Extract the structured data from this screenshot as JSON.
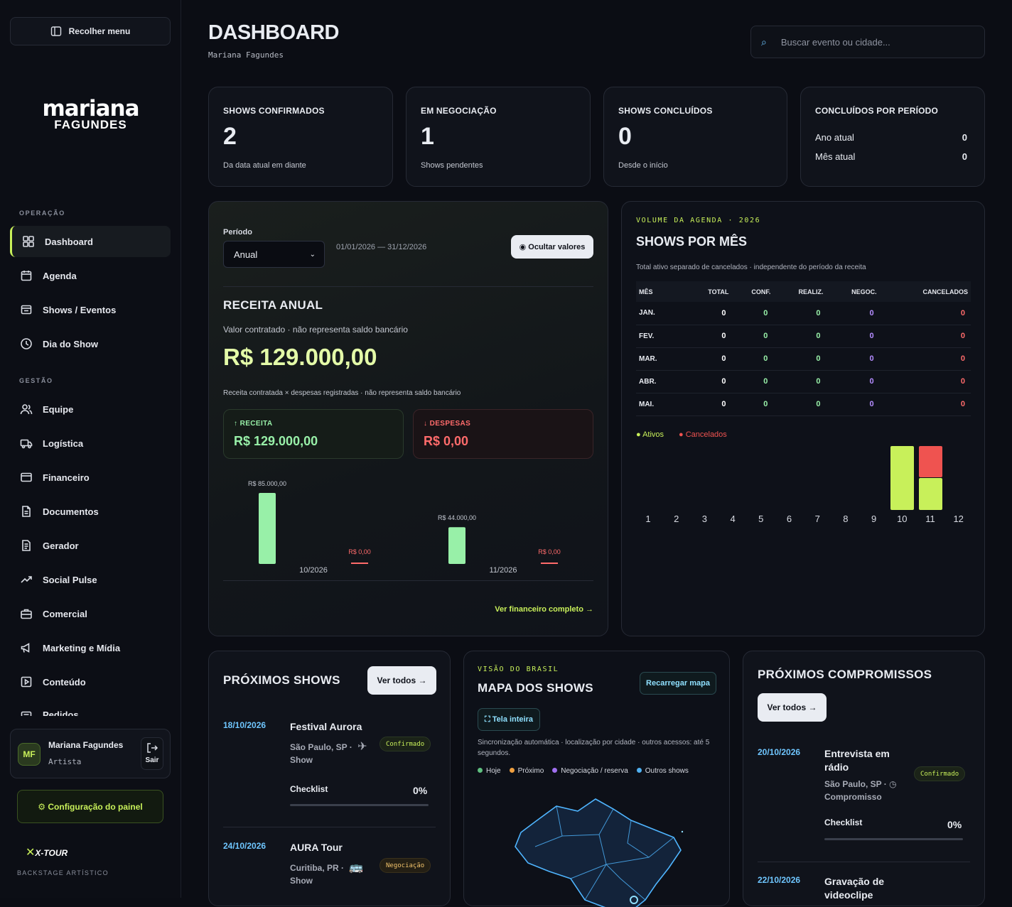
{
  "sidebar": {
    "collapse_label": "Recolher menu",
    "brand_line1": "mariana",
    "brand_line2": "FAGUNDES",
    "section_operacao": "OPERAÇÃO",
    "section_gestao": "GESTÃO",
    "items": [
      {
        "label": "Dashboard",
        "icon": "grid-icon",
        "active": true
      },
      {
        "label": "Agenda",
        "icon": "calendar-icon"
      },
      {
        "label": "Shows / Eventos",
        "icon": "ticket-icon"
      },
      {
        "label": "Dia do Show",
        "icon": "clock-icon"
      },
      {
        "label": "Equipe",
        "icon": "users-icon"
      },
      {
        "label": "Logística",
        "icon": "truck-icon"
      },
      {
        "label": "Financeiro",
        "icon": "wallet-icon"
      },
      {
        "label": "Documentos",
        "icon": "document-icon"
      },
      {
        "label": "Gerador",
        "icon": "file-text-icon"
      },
      {
        "label": "Social Pulse",
        "icon": "trending-icon"
      },
      {
        "label": "Comercial",
        "icon": "briefcase-icon"
      },
      {
        "label": "Marketing e Mídia",
        "icon": "megaphone-icon"
      },
      {
        "label": "Conteúdo",
        "icon": "play-icon"
      },
      {
        "label": "Pedidos",
        "icon": "list-icon"
      }
    ],
    "user": {
      "initials": "MF",
      "name": "Mariana Fagundes",
      "role": "Artista",
      "logout_label": "Sair"
    },
    "config_label": "⚙ Configuração do painel",
    "footer_logo": "X-TOUR",
    "footer_tag": "BACKSTAGE ARTÍSTICO"
  },
  "header": {
    "title": "DASHBOARD",
    "subtitle": "Mariana Fagundes",
    "search_placeholder": "Buscar evento ou cidade..."
  },
  "kpis": [
    {
      "title": "SHOWS CONFIRMADOS",
      "value": "2",
      "sub": "Da data atual em diante"
    },
    {
      "title": "EM NEGOCIAÇÃO",
      "value": "1",
      "sub": "Shows pendentes"
    },
    {
      "title": "SHOWS CONCLUÍDOS",
      "value": "0",
      "sub": "Desde o início"
    }
  ],
  "period_kpi": {
    "title": "CONCLUÍDOS POR PERÍODO",
    "rows": [
      {
        "label": "Ano atual",
        "value": "0"
      },
      {
        "label": "Mês atual",
        "value": "0"
      }
    ]
  },
  "finance": {
    "period_label": "Período",
    "period_value": "Anual",
    "range": "01/01/2026 — 31/12/2026",
    "hide_label": "◉ Ocultar valores",
    "title": "RECEITA ANUAL",
    "note": "Valor contratado · não representa saldo bancário",
    "total": "R$ 129.000,00",
    "note2": "Receita contratada × despesas registradas · não representa saldo bancário",
    "receita_label": "↑ RECEITA",
    "receita_value": "R$ 129.000,00",
    "despesas_label": "↓ DESPESAS",
    "despesas_value": "R$ 0,00",
    "link": "Ver financeiro completo →",
    "colors": {
      "receita": "#98f0a8",
      "despesas": "#ff6b6b"
    }
  },
  "chart_data": [
    {
      "type": "bar",
      "categories": [
        "10/2026",
        "11/2026"
      ],
      "series": [
        {
          "values": [
            85000,
            44000
          ],
          "value_labels": [
            "R$ 85.000,00",
            "R$ 44.000,00"
          ]
        },
        {
          "values": [
            0,
            0
          ],
          "value_labels": [
            "R$ 0,00",
            "R$ 0,00"
          ]
        }
      ],
      "ylim": [
        0,
        85000
      ]
    },
    {
      "type": "bar",
      "stacked": true,
      "categories": [
        "1",
        "2",
        "3",
        "4",
        "5",
        "6",
        "7",
        "8",
        "9",
        "10",
        "11",
        "12"
      ],
      "series": [
        {
          "name": "Ativos",
          "color": "#c8f05a",
          "values": [
            0,
            0,
            0,
            0,
            0,
            0,
            0,
            0,
            0,
            2,
            1,
            0
          ]
        },
        {
          "name": "Cancelados",
          "color": "#ef5350",
          "values": [
            0,
            0,
            0,
            0,
            0,
            0,
            0,
            0,
            0,
            0,
            1,
            0
          ]
        }
      ],
      "ylim": [
        0,
        2
      ],
      "legend": "top-left"
    }
  ],
  "monthly": {
    "eyebrow": "VOLUME DA AGENDA · 2026",
    "title": "SHOWS POR MÊS",
    "note": "Total ativo separado de cancelados · independente do período da receita",
    "headers": [
      "MÊS",
      "TOTAL",
      "CONF.",
      "REALIZ.",
      "NEGOC.",
      "CANCELADOS"
    ],
    "rows": [
      [
        "JAN.",
        "0",
        "0",
        "0",
        "0",
        "0"
      ],
      [
        "FEV.",
        "0",
        "0",
        "0",
        "0",
        "0"
      ],
      [
        "MAR.",
        "0",
        "0",
        "0",
        "0",
        "0"
      ],
      [
        "ABR.",
        "0",
        "0",
        "0",
        "0",
        "0"
      ],
      [
        "MAI.",
        "0",
        "0",
        "0",
        "0",
        "0"
      ]
    ],
    "legend_ativos": "● Ativos",
    "legend_cancelados": "● Cancelados"
  },
  "upcoming": {
    "title": "PRÓXIMOS SHOWS",
    "see_all": "Ver todos →",
    "checklist_label": "Checklist",
    "items": [
      {
        "date": "18/10/2026",
        "name": "Festival Aurora",
        "location": "São Paulo, SP ·",
        "type": "Show",
        "badge": "Confirmado",
        "transport": "✈",
        "checklist": "0%",
        "progress": 0
      },
      {
        "date": "24/10/2026",
        "name": "AURA Tour",
        "location": "Curitiba, PR ·",
        "type": "Show",
        "badge": "Negociação",
        "transport": "🚌"
      }
    ]
  },
  "map": {
    "eyebrow": "VISÃO DO BRASIL",
    "title": "MAPA DOS SHOWS",
    "reload_label": "Recarregar mapa",
    "fullscreen_label": "⛶ Tela inteira",
    "note": "Sincronização automática · localização por cidade · outros acessos: até 5 segundos.",
    "legend": [
      {
        "label": "Hoje",
        "color": "#5fbf7f"
      },
      {
        "label": "Próximo",
        "color": "#f0a040"
      },
      {
        "label": "Negociação / reserva",
        "color": "#a070f0"
      },
      {
        "label": "Outros shows",
        "color": "#50b0f0"
      }
    ]
  },
  "commitments": {
    "title": "PRÓXIMOS COMPROMISSOS",
    "see_all": "Ver todos →",
    "checklist_label": "Checklist",
    "items": [
      {
        "date": "20/10/2026",
        "name": "Entrevista em rádio",
        "location": "São Paulo, SP · ◷",
        "type": "Compromisso",
        "badge": "Confirmado",
        "checklist": "0%",
        "progress": 0
      },
      {
        "date": "22/10/2026",
        "name": "Gravação de videoclipe"
      }
    ]
  }
}
